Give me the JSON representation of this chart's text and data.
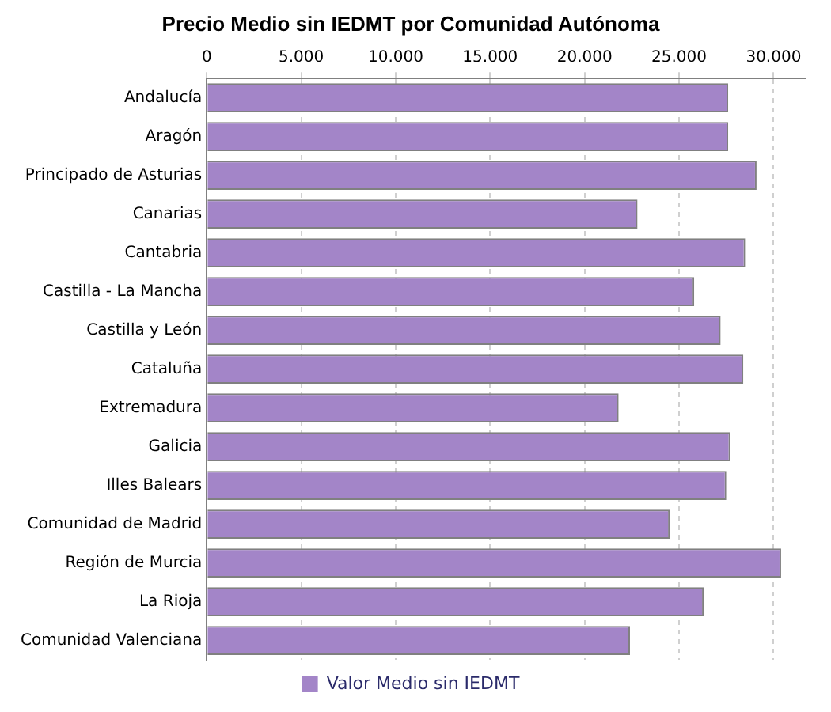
{
  "chart_data": {
    "type": "bar",
    "orientation": "horizontal",
    "title": "Precio Medio sin IEDMT por Comunidad Autónoma",
    "categories": [
      "Andalucía",
      "Aragón",
      "Principado de Asturias",
      "Canarias",
      "Cantabria",
      "Castilla - La Mancha",
      "Castilla y León",
      "Cataluña",
      "Extremadura",
      "Galicia",
      "Illes Balears",
      "Comunidad de Madrid",
      "Región de Murcia",
      "La Rioja",
      "Comunidad Valenciana"
    ],
    "series": [
      {
        "name": "Valor Medio sin IEDMT",
        "color": "#a385c8",
        "values": [
          27600,
          27600,
          29100,
          22800,
          28500,
          25800,
          27200,
          28400,
          21800,
          27700,
          27500,
          24500,
          30400,
          26300,
          22400
        ]
      }
    ],
    "xlim": [
      0,
      31700
    ],
    "xticks": [
      {
        "value": 0,
        "label": "0"
      },
      {
        "value": 5000,
        "label": "5.000"
      },
      {
        "value": 10000,
        "label": "10.000"
      },
      {
        "value": 15000,
        "label": "15.000"
      },
      {
        "value": 20000,
        "label": "20.000"
      },
      {
        "value": 25000,
        "label": "25.000"
      },
      {
        "value": 30000,
        "label": "30.000"
      }
    ],
    "grid": "x",
    "legend": "bottom"
  }
}
